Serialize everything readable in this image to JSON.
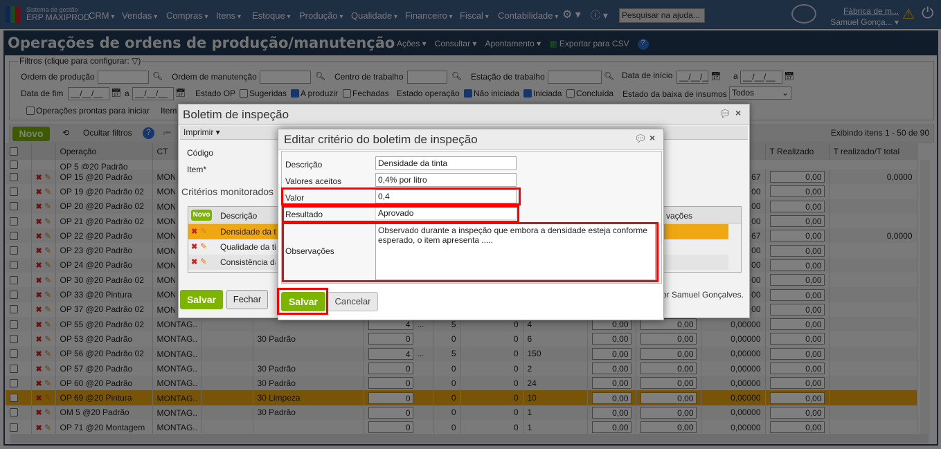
{
  "topbar": {
    "brand_small": "Sistema de gestão",
    "brand": "ERP MAXIPROD",
    "menu": [
      "CRM",
      "Vendas",
      "Compras",
      "Itens",
      "Estoque",
      "Produção",
      "Qualidade",
      "Financeiro",
      "Fiscal",
      "Contabilidade"
    ],
    "search_placeholder": "Pesquisar na ajuda...",
    "company": "Fábrica de m...",
    "user": "Samuel Gonça...",
    "logo_colors": [
      "#1a4fa0",
      "#2e9a3a",
      "#c8202a"
    ]
  },
  "window": {
    "title": "Operações de ordens de produção/manutenção",
    "menu": [
      "Ações ▾",
      "Consultar ▾",
      "Apontamento ▾",
      "Exportar para CSV"
    ]
  },
  "filters": {
    "legend": "Filtros (clique para configurar:",
    "ordem_producao": "Ordem de produção",
    "ordem_manutencao": "Ordem de manutenção",
    "centro": "Centro de trabalho",
    "estacao": "Estação de trabalho",
    "data_inicio": "Data de início",
    "data_fim": "Data de fim",
    "a": "a",
    "date_placeholder": "__/__/__",
    "estado_op": "Estado OP",
    "sugeridas": "Sugeridas",
    "a_produzir": "A produzir",
    "fechadas": "Fechadas",
    "estado_operacao": "Estado operação",
    "nao_iniciada": "Não iniciada",
    "iniciada": "Iniciada",
    "concluida": "Concluída",
    "estado_baixa": "Estado da baixa de insumos",
    "estado_baixa_value": "Todos",
    "prontas": "Operações prontas para iniciar",
    "item": "Item"
  },
  "toolbar": {
    "novo": "Novo",
    "ocultar": "Ocultar filtros",
    "exibindo": "Exibindo itens 1 - 50 de 90"
  },
  "grid": {
    "headers": [
      "Operação",
      "CT",
      "T Realizado",
      "T realizado/T total"
    ],
    "partial_row": "OP 5 @20 Padrão",
    "rows": [
      {
        "op": "OP 15 @20 Padrão",
        "ct": "MONTAG...",
        "c11": "67",
        "tr": "0,00",
        "tt": "0,0000"
      },
      {
        "op": "OP 19 @20 Padrão 02",
        "ct": "MONTAG...",
        "c11": "00",
        "tr": "0,00",
        "tt": ""
      },
      {
        "op": "OP 20 @20 Padrão 02",
        "ct": "MONTAG...",
        "c11": "00",
        "tr": "0,00",
        "tt": ""
      },
      {
        "op": "OP 21 @20 Padrão 02",
        "ct": "MONTAG...",
        "c11": "00",
        "tr": "0,00",
        "tt": ""
      },
      {
        "op": "OP 22 @20 Padrão",
        "ct": "MONTAG...",
        "c11": "67",
        "tr": "0,00",
        "tt": "0,0000"
      },
      {
        "op": "OP 23 @20 Padrão",
        "ct": "MONTAG...",
        "c11": "00",
        "tr": "0,00",
        "tt": ""
      },
      {
        "op": "OP 24 @20 Padrão",
        "ct": "MONTAG...",
        "c11": "00",
        "tr": "0,00",
        "tt": ""
      },
      {
        "op": "OP 30 @20 Padrão 02",
        "ct": "MONTAG...",
        "c11": "00",
        "tr": "0,00",
        "tt": ""
      },
      {
        "op": "OP 33 @20 Pintura",
        "ct": "MONTAG...",
        "c11": "00",
        "tr": "0,00",
        "tt": ""
      },
      {
        "op": "OP 37 @20 Padrão 02",
        "ct": "MONTAG...",
        "c11": "00",
        "tr": "0,00",
        "tt": ""
      },
      {
        "op": "OP 55 @20 Padrão 02",
        "ct": "MONTAG...",
        "c4": "",
        "c5": "4",
        "dots": "...",
        "c6": "5",
        "c7": "0",
        "c8": "4",
        "c9": "0,00",
        "c10": "0,00",
        "c11": "0,00000",
        "tr": "0,00",
        "tt": ""
      },
      {
        "op": "OP 53 @20 Padrão",
        "ct": "MONTAG...",
        "c4": "30 Padrão",
        "c5": "0",
        "dots": "",
        "c6": "0",
        "c7": "0",
        "c8": "6",
        "c9": "0,00",
        "c10": "0,00",
        "c11": "0,00000",
        "tr": "0,00",
        "tt": ""
      },
      {
        "op": "OP 56 @20 Padrão 02",
        "ct": "MONTAG...",
        "c4": "",
        "c5": "4",
        "dots": "...",
        "c6": "5",
        "c7": "0",
        "c8": "150",
        "c9": "0,00",
        "c10": "0,00",
        "c11": "0,00000",
        "tr": "0,00",
        "tt": ""
      },
      {
        "op": "OP 57 @20 Padrão",
        "ct": "MONTAG...",
        "c4": "30 Padrão",
        "c5": "0",
        "dots": "",
        "c6": "0",
        "c7": "0",
        "c8": "2",
        "c9": "0,00",
        "c10": "0,00",
        "c11": "0,00000",
        "tr": "0,00",
        "tt": ""
      },
      {
        "op": "OP 60 @20 Padrão",
        "ct": "MONTAG...",
        "c4": "30 Padrão",
        "c5": "0",
        "dots": "",
        "c6": "0",
        "c7": "0",
        "c8": "24",
        "c9": "0,00",
        "c10": "0,00",
        "c11": "0,00000",
        "tr": "0,00",
        "tt": ""
      },
      {
        "op": "OP 69 @20 Pintura",
        "ct": "MONTAG...",
        "c4": "30 Limpeza",
        "c5": "0",
        "dots": "",
        "c6": "0",
        "c7": "0",
        "c8": "10",
        "c9": "0,00",
        "c10": "0,00",
        "c11": "0,00000",
        "tr": "0,00",
        "tt": "",
        "selected": true
      },
      {
        "op": "OM 5 @20 Padrão",
        "ct": "MONTAG...",
        "c4": "30 Padrão",
        "c5": "0",
        "dots": "",
        "c6": "0",
        "c7": "0",
        "c8": "1",
        "c9": "0,00",
        "c10": "0,00",
        "c11": "0,00000",
        "tr": "0,00",
        "tt": ""
      },
      {
        "op": "OP 71 @20 Montagem",
        "ct": "MONTAG...",
        "c4": "",
        "c5": "0",
        "dots": "",
        "c6": "0",
        "c7": "0",
        "c8": "1",
        "c9": "0,00",
        "c10": "0,00",
        "c11": "0,00000",
        "tr": "0,00",
        "tt": ""
      }
    ]
  },
  "boletim": {
    "title": "Boletim de inspeção",
    "imprimir": "Imprimir",
    "codigo": "Código",
    "item": "Item*",
    "criterios": "Critérios monitorados",
    "grid_novo": "Novo",
    "grid_descricao": "Descrição",
    "grid_obs": "vações",
    "criterios_rows": [
      "Densidade da tinta",
      "Qualidade da ti",
      "Consistência da"
    ],
    "footer_text": "por Samuel Gonçalves.",
    "salvar": "Salvar",
    "fechar": "Fechar"
  },
  "editar": {
    "title": "Editar critério do boletim de inspeção",
    "descricao_label": "Descrição",
    "descricao": "Densidade da tinta",
    "valores_label": "Valores aceitos",
    "valores": "0,4% por litro",
    "valor_label": "Valor",
    "valor": "0,4",
    "resultado_label": "Resultado",
    "resultado": "Aprovado",
    "obs_label": "Observações",
    "obs": "Observado durante a inspeção que embora a densidade esteja conforme esperado, o item apresenta .....",
    "salvar": "Salvar",
    "cancelar": "Cancelar",
    "highlight_color": "#ff0000"
  },
  "colors": {
    "accent_green": "#7cb400",
    "header": "#3d5d86",
    "title_bar": "#213852",
    "selected_row": "#f0a812"
  }
}
